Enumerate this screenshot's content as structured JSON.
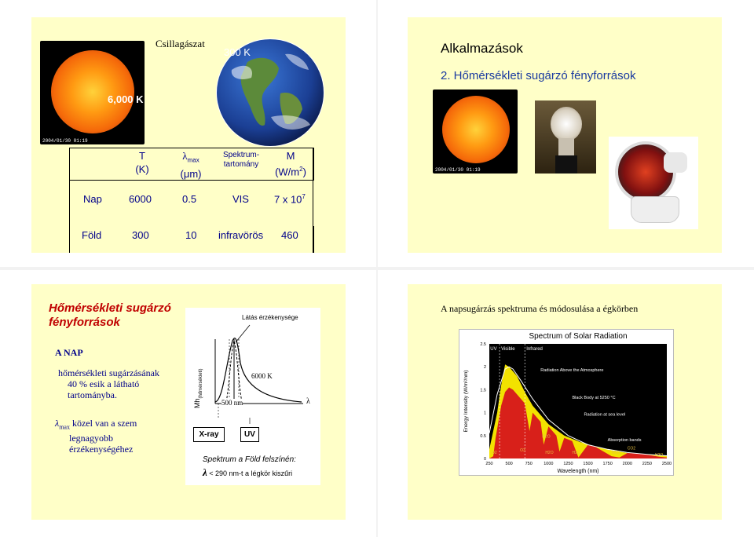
{
  "slide1": {
    "title": "Csillagászat",
    "sun_temp": "6,000 K",
    "sun_stamp": "2004/01/30 01:19",
    "earth_temp": "300 K",
    "headers": {
      "t": "T",
      "t_unit": "(K)",
      "lambda": "λ",
      "lambda_sub": "max",
      "lambda_unit": "(μm)",
      "spectrum": "Spektrum-",
      "spectrum2": "tartomány",
      "m": "M",
      "m_unit_pre": "(W/m",
      "m_unit_sup": "2",
      "m_unit_post": ")"
    },
    "rows": [
      {
        "name": "Nap",
        "t": "6000",
        "lambda": "0.5",
        "range": "VIS",
        "m_pre": "7 x 10",
        "m_sup": "7"
      },
      {
        "name": "Föld",
        "t": "300",
        "lambda": "10",
        "range": "infravörös",
        "m_pre": "460",
        "m_sup": ""
      }
    ]
  },
  "slide2": {
    "title": "Alkalmazások",
    "subtitle": "2. Hőmérsékleti sugárzó fényforrások",
    "sun_stamp": "2004/01/30 01:19",
    "images": [
      "sun-photo",
      "light-bulb-photo",
      "infrared-lamp-photo"
    ]
  },
  "slide3": {
    "title_line1": "Hőmérsékleti sugárzó",
    "title_line2": "fényforrások",
    "section": "A NAP",
    "text1_l1": "hőmérsékleti sugárzásának",
    "text1_l2": "40 % esik a látható",
    "text1_l3": "tartományba.",
    "text2_lambda": "λ",
    "text2_sub": "max",
    "text2_l1": " közel van a szem",
    "text2_l2": "legnagyobb",
    "text2_l3": "érzékenységéhez",
    "diagram": {
      "vision_label": "Látás érzékenysége",
      "ylabel": "Mh",
      "ylabel_sub": "(hőmérsékleti)",
      "temp_label": "6000 K",
      "peak_label": "500 nm",
      "lambda_label": "λ",
      "xray": "X-ray",
      "uv": "UV",
      "caption": "Spektrum a Föld felszínén:",
      "cut_lambda": "λ",
      "cut_text": " < 290 nm-t a légkör kiszűri"
    }
  },
  "slide4": {
    "title": "A napsugárzás spektruma és módosulása a égkörben",
    "chart_data": {
      "type": "area",
      "title": "Spectrum of Solar Radiation",
      "xlabel": "Wavelength (nm)",
      "ylabel": "Energy Intensity (W/m²/nm)",
      "xlim": [
        250,
        2500
      ],
      "ylim": [
        0,
        2.5
      ],
      "xticks": [
        "250",
        "500",
        "750",
        "1000",
        "1250",
        "1500",
        "1750",
        "2000",
        "2250",
        "2500"
      ],
      "yticks": [
        "0",
        "0.5",
        "1",
        "1.5",
        "2",
        "2.5"
      ],
      "bands": [
        "UV",
        "Visible",
        "Infrared"
      ],
      "annotations": {
        "above": "Radiation Above the Atmosphere",
        "blackbody": "Black Body at 5250 °C",
        "sea": "Radiation at sea level",
        "absorption": "Absorption bands",
        "o2": "O2",
        "o3": "O3",
        "h2o": "H2O",
        "co2": "CO2"
      },
      "series": [
        {
          "name": "Radiation Above the Atmosphere",
          "color": "#f2e200",
          "x": [
            250,
            300,
            350,
            400,
            450,
            500,
            550,
            600,
            700,
            800,
            900,
            1000,
            1200,
            1400,
            1600,
            1800,
            2000,
            2200,
            2500
          ],
          "y": [
            0.2,
            0.6,
            1.0,
            1.6,
            2.05,
            2.0,
            1.9,
            1.8,
            1.45,
            1.15,
            0.95,
            0.75,
            0.5,
            0.36,
            0.26,
            0.18,
            0.12,
            0.09,
            0.06
          ]
        },
        {
          "name": "Radiation at sea level",
          "color": "#d8201a",
          "x": [
            250,
            300,
            330,
            400,
            450,
            500,
            550,
            600,
            700,
            760,
            800,
            900,
            940,
            1000,
            1100,
            1140,
            1200,
            1300,
            1380,
            1500,
            1600,
            1800,
            1900,
            2000,
            2200,
            2400,
            2500
          ],
          "y": [
            0,
            0.05,
            0.45,
            1.15,
            1.45,
            1.55,
            1.5,
            1.4,
            1.2,
            0.6,
            1.0,
            0.8,
            0.3,
            0.7,
            0.5,
            0.15,
            0.45,
            0.38,
            0.02,
            0.3,
            0.25,
            0.05,
            0.02,
            0.12,
            0.1,
            0.04,
            0.02
          ]
        },
        {
          "name": "Black Body at 5250 °C",
          "color": "#000000",
          "x": [
            250,
            350,
            450,
            500,
            550,
            650,
            800,
            1000,
            1250,
            1500,
            1750,
            2000,
            2250,
            2500
          ],
          "y": [
            0.55,
            1.4,
            1.95,
            2.0,
            1.95,
            1.7,
            1.3,
            0.85,
            0.5,
            0.3,
            0.2,
            0.13,
            0.09,
            0.06
          ]
        }
      ]
    }
  }
}
